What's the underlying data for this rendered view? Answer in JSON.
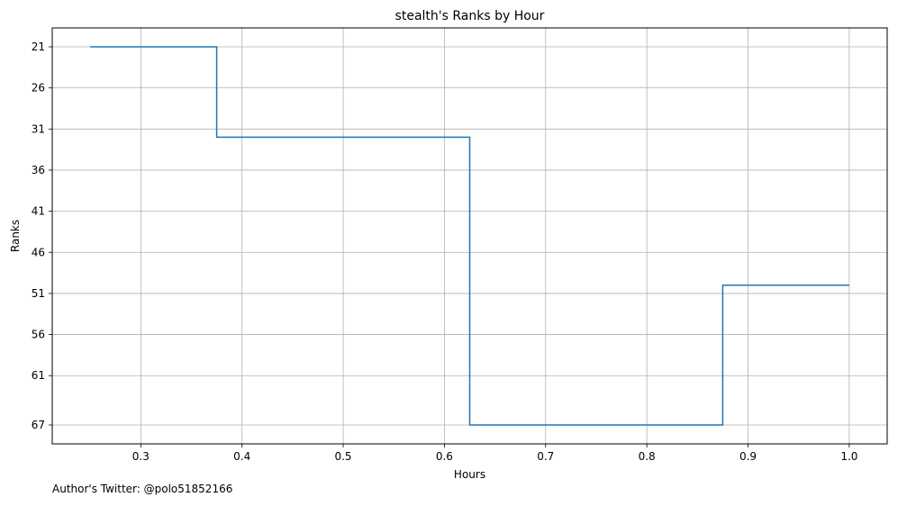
{
  "footnote": "Author's Twitter: @polo51852166",
  "chart_data": {
    "type": "line",
    "step": true,
    "title": "stealth's Ranks by Hour",
    "xlabel": "Hours",
    "ylabel": "Ranks",
    "y_inverted": true,
    "grid": true,
    "xlim": [
      0.2125,
      1.0375
    ],
    "ylim": [
      69.3,
      18.7
    ],
    "x_ticks": [
      0.3,
      0.4,
      0.5,
      0.6,
      0.7,
      0.8,
      0.9,
      1.0
    ],
    "x_tick_labels": [
      "0.3",
      "0.4",
      "0.5",
      "0.6",
      "0.7",
      "0.8",
      "0.9",
      "1.0"
    ],
    "y_ticks": [
      21,
      26,
      31,
      36,
      41,
      46,
      51,
      56,
      61,
      67
    ],
    "y_tick_labels": [
      "21",
      "26",
      "31",
      "36",
      "41",
      "46",
      "51",
      "56",
      "61",
      "67"
    ],
    "series": [
      {
        "color": "#1f77b4",
        "x": [
          0.25,
          0.375,
          0.625,
          0.875,
          1.0
        ],
        "y": [
          21,
          32,
          67,
          50,
          50
        ]
      }
    ]
  }
}
